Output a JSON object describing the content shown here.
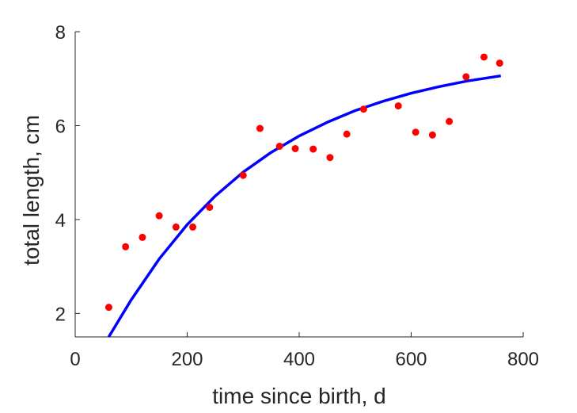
{
  "chart_data": {
    "type": "scatter",
    "title": "",
    "xlabel": "time since birth, d",
    "ylabel": "total length, cm",
    "xlim": [
      0,
      800
    ],
    "ylim": [
      1.5,
      8
    ],
    "xticks": [
      0,
      200,
      400,
      600,
      800
    ],
    "yticks": [
      2,
      4,
      6,
      8
    ],
    "grid": false,
    "series": [
      {
        "kind": "points",
        "color": "#ff0000",
        "x": [
          60,
          90,
          120,
          150,
          180,
          210,
          240,
          300,
          330,
          365,
          393,
          425,
          455,
          485,
          515,
          577,
          608,
          638,
          668,
          698,
          730,
          758
        ],
        "y": [
          2.13,
          3.42,
          3.62,
          4.08,
          3.84,
          3.84,
          4.26,
          4.94,
          5.94,
          5.56,
          5.51,
          5.5,
          5.32,
          5.82,
          6.35,
          6.42,
          5.86,
          5.8,
          6.09,
          7.04,
          7.46,
          7.33
        ]
      },
      {
        "kind": "fit-line",
        "color": "#0000ff",
        "x": [
          60,
          100,
          150,
          200,
          250,
          300,
          350,
          400,
          450,
          500,
          550,
          600,
          650,
          700,
          760
        ],
        "y": [
          1.5,
          2.29,
          3.16,
          3.89,
          4.5,
          5.01,
          5.43,
          5.78,
          6.07,
          6.32,
          6.52,
          6.69,
          6.83,
          6.95,
          7.06
        ]
      }
    ]
  }
}
